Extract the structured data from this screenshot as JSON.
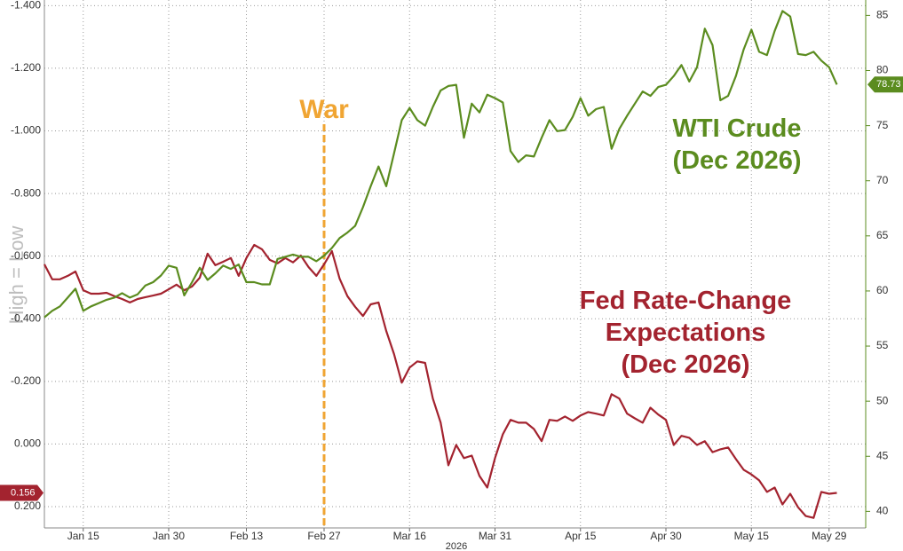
{
  "chart_data": {
    "type": "line",
    "x_label": "2026",
    "ylabel": "High = Low",
    "categories": [
      null,
      null,
      null,
      null,
      null,
      "Jan 15",
      null,
      null,
      null,
      null,
      null,
      null,
      null,
      null,
      null,
      null,
      "Jan 30",
      null,
      null,
      null,
      null,
      null,
      null,
      null,
      null,
      null,
      "Feb 13",
      null,
      null,
      null,
      null,
      null,
      null,
      null,
      null,
      null,
      "Feb 27",
      null,
      null,
      null,
      null,
      null,
      null,
      null,
      null,
      null,
      null,
      "Mar 16",
      null,
      null,
      null,
      null,
      null,
      null,
      null,
      null,
      null,
      null,
      "Mar 31",
      null,
      null,
      null,
      null,
      null,
      null,
      null,
      null,
      null,
      null,
      "Apr 15",
      null,
      null,
      null,
      null,
      null,
      null,
      null,
      null,
      null,
      null,
      "Apr 30",
      null,
      null,
      null,
      null,
      null,
      null,
      null,
      null,
      null,
      null,
      "May 15",
      null,
      null,
      null,
      null,
      null,
      null,
      null,
      null,
      null,
      "May 29",
      null
    ],
    "series": [
      {
        "name": "Fed Rate-Change\nExpectations\n(Dec 2026)",
        "color": "#a3232f",
        "axis": "y",
        "values": [
          -0.574,
          -0.526,
          -0.526,
          -0.537,
          -0.551,
          -0.491,
          -0.48,
          -0.48,
          -0.483,
          -0.472,
          -0.463,
          -0.452,
          -0.463,
          -0.469,
          -0.474,
          -0.48,
          -0.494,
          -0.509,
          -0.491,
          -0.503,
          -0.531,
          -0.608,
          -0.571,
          -0.582,
          -0.594,
          -0.537,
          -0.594,
          -0.636,
          -0.622,
          -0.588,
          -0.577,
          -0.594,
          -0.58,
          -0.602,
          -0.565,
          -0.537,
          -0.574,
          -0.616,
          -0.528,
          -0.472,
          -0.438,
          -0.409,
          -0.446,
          -0.452,
          -0.361,
          -0.287,
          -0.196,
          -0.244,
          -0.264,
          -0.259,
          -0.145,
          -0.068,
          0.068,
          0.003,
          0.045,
          0.037,
          0.102,
          0.139,
          0.045,
          -0.031,
          -0.077,
          -0.068,
          -0.068,
          -0.048,
          -0.009,
          -0.077,
          -0.074,
          -0.088,
          -0.074,
          -0.091,
          -0.102,
          -0.097,
          -0.091,
          -0.159,
          -0.145,
          -0.097,
          -0.082,
          -0.068,
          -0.116,
          -0.094,
          -0.077,
          0.003,
          -0.026,
          -0.02,
          0.003,
          -0.009,
          0.026,
          0.017,
          0.011,
          0.048,
          0.082,
          0.097,
          0.116,
          0.153,
          0.139,
          0.193,
          0.159,
          0.202,
          0.23,
          0.236,
          0.153,
          0.159,
          0.156
        ]
      },
      {
        "name": "WTI Crude\n(Dec 2026)",
        "color": "#5b8c1f",
        "axis": "y2",
        "values": [
          57.6,
          58.2,
          58.6,
          59.4,
          60.2,
          58.2,
          58.6,
          58.9,
          59.2,
          59.4,
          59.8,
          59.4,
          59.7,
          60.5,
          60.8,
          61.4,
          62.3,
          62.1,
          59.6,
          60.8,
          62.1,
          61.0,
          61.6,
          62.3,
          62.0,
          62.4,
          60.8,
          60.8,
          60.6,
          60.6,
          62.9,
          63.1,
          63.3,
          63.1,
          63.1,
          62.7,
          63.2,
          63.9,
          64.8,
          65.3,
          65.9,
          67.6,
          69.5,
          71.3,
          69.5,
          72.5,
          75.5,
          76.6,
          75.5,
          75.0,
          76.7,
          78.2,
          78.6,
          78.7,
          73.9,
          77.0,
          76.2,
          77.8,
          77.5,
          77.1,
          72.7,
          71.7,
          72.3,
          72.2,
          73.9,
          75.5,
          74.5,
          74.6,
          75.8,
          77.5,
          75.9,
          76.5,
          76.7,
          72.9,
          74.7,
          75.9,
          77.0,
          78.1,
          77.7,
          78.5,
          78.7,
          79.5,
          80.5,
          79.0,
          80.3,
          83.8,
          82.3,
          77.3,
          77.7,
          79.5,
          81.9,
          83.7,
          81.7,
          81.4,
          83.6,
          85.4,
          84.9,
          81.5,
          81.4,
          81.7,
          80.9,
          80.3,
          78.73
        ]
      }
    ],
    "ylim": [
      0.268,
      -1.418
    ],
    "yticks": [
      {
        "value": -1.4,
        "label": "-1.400"
      },
      {
        "value": -1.2,
        "label": "-1.200"
      },
      {
        "value": -1.0,
        "label": "-1.000"
      },
      {
        "value": -0.8,
        "label": "-0.800"
      },
      {
        "value": -0.6,
        "label": "-0.600"
      },
      {
        "value": -0.4,
        "label": "-0.400"
      },
      {
        "value": -0.2,
        "label": "-0.200"
      },
      {
        "value": 0,
        "label": "0.000"
      },
      {
        "value": 0.2,
        "label": "0.200"
      }
    ],
    "y2lim": [
      38.5,
      86.4
    ],
    "y2ticks": [
      40,
      45,
      50,
      55,
      60,
      65,
      70,
      75,
      80,
      85
    ],
    "grid": true,
    "annotations": [
      {
        "text": "War",
        "x": "Feb 27",
        "color": "#f0a533"
      }
    ]
  }
}
